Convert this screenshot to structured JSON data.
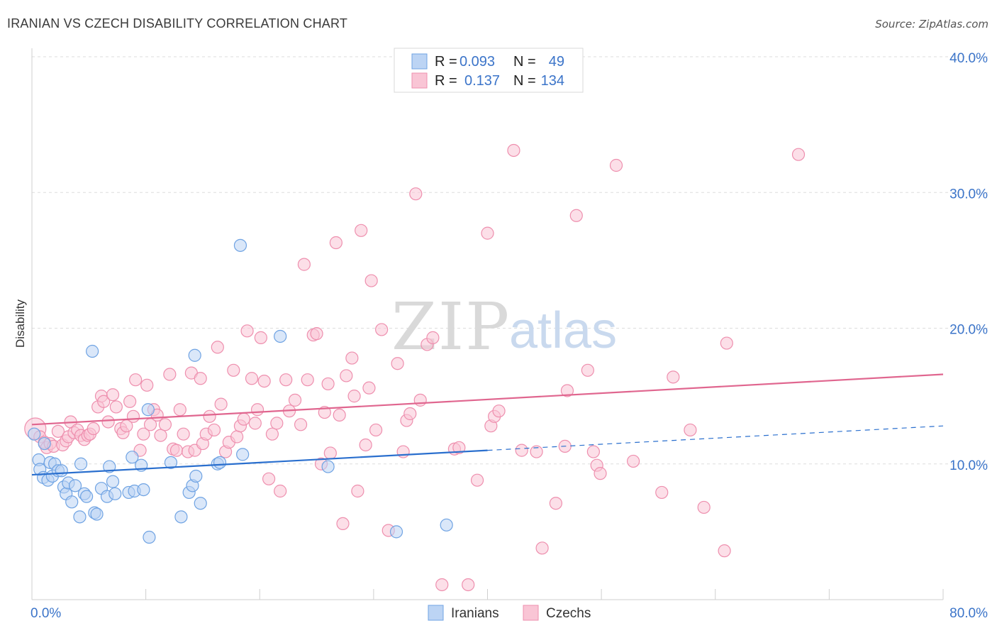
{
  "header": {
    "title": "IRANIAN VS CZECH DISABILITY CORRELATION CHART",
    "source": "Source: ZipAtlas.com"
  },
  "watermark": {
    "zip": "ZIP",
    "atlas": "atlas"
  },
  "colors": {
    "iranians": "#6fa3e3",
    "iranians_fill": "#bcd4f4",
    "iranians_line": "#2a6fce",
    "czechs": "#ee8fae",
    "czechs_fill": "#f9c5d5",
    "czechs_line": "#e0668f",
    "grid": "#dddddd",
    "tick_text": "#3b74c9"
  },
  "legend": {
    "rows": [
      {
        "r_label": "R =",
        "r_value": "0.093",
        "n_label": "N =",
        "n_value": "49"
      },
      {
        "r_label": "R =",
        "r_value": "0.137",
        "n_label": "N =",
        "n_value": "134"
      }
    ]
  },
  "bottom_legend": {
    "items": [
      "Iranians",
      "Czechs"
    ]
  },
  "chart_data": {
    "type": "scatter",
    "xlabel": "",
    "ylabel": "Disability",
    "xlim": [
      0,
      80
    ],
    "ylim": [
      0,
      40
    ],
    "x_tick_labels": [
      "0.0%",
      "80.0%"
    ],
    "y_ticks": [
      10,
      20,
      30,
      40
    ],
    "y_tick_labels": [
      "10.0%",
      "20.0%",
      "30.0%",
      "40.0%"
    ],
    "grid": true,
    "legend_position": "top-center",
    "series": [
      {
        "name": "Iranians",
        "trend": {
          "x": [
            0,
            40
          ],
          "y": [
            9.2,
            11.0
          ],
          "extended_dashed": {
            "x": [
              40,
              80
            ],
            "y": [
              11.0,
              12.8
            ]
          }
        },
        "points": [
          [
            0.2,
            12.2
          ],
          [
            0.6,
            10.3
          ],
          [
            0.7,
            9.6
          ],
          [
            1.0,
            9.0
          ],
          [
            1.1,
            11.5
          ],
          [
            1.4,
            8.8
          ],
          [
            1.6,
            10.1
          ],
          [
            1.8,
            9.1
          ],
          [
            2.0,
            10.0
          ],
          [
            2.3,
            9.5
          ],
          [
            2.6,
            9.5
          ],
          [
            2.8,
            8.3
          ],
          [
            3.0,
            7.8
          ],
          [
            3.2,
            8.6
          ],
          [
            3.5,
            7.2
          ],
          [
            3.8,
            8.4
          ],
          [
            4.2,
            6.1
          ],
          [
            4.3,
            10.0
          ],
          [
            4.6,
            7.8
          ],
          [
            4.8,
            7.6
          ],
          [
            5.3,
            18.3
          ],
          [
            5.5,
            6.4
          ],
          [
            5.7,
            6.3
          ],
          [
            6.1,
            8.2
          ],
          [
            6.6,
            7.6
          ],
          [
            6.8,
            9.8
          ],
          [
            7.1,
            8.7
          ],
          [
            7.3,
            7.8
          ],
          [
            8.5,
            7.9
          ],
          [
            8.8,
            10.5
          ],
          [
            9.0,
            8.0
          ],
          [
            9.6,
            9.9
          ],
          [
            9.8,
            8.1
          ],
          [
            10.3,
            4.6
          ],
          [
            10.2,
            14.0
          ],
          [
            12.2,
            10.1
          ],
          [
            13.1,
            6.1
          ],
          [
            13.8,
            7.9
          ],
          [
            14.1,
            8.4
          ],
          [
            14.4,
            9.1
          ],
          [
            14.8,
            7.1
          ],
          [
            14.3,
            18.0
          ],
          [
            16.3,
            10.0
          ],
          [
            16.5,
            10.1
          ],
          [
            18.3,
            26.1
          ],
          [
            18.5,
            10.7
          ],
          [
            21.8,
            19.4
          ],
          [
            26.0,
            9.8
          ],
          [
            32.0,
            5.0
          ],
          [
            36.4,
            5.5
          ]
        ]
      },
      {
        "name": "Czechs",
        "trend": {
          "x": [
            0,
            80
          ],
          "y": [
            12.9,
            16.6
          ]
        },
        "points": [
          [
            0.3,
            12.6
          ],
          [
            0.7,
            12.0
          ],
          [
            1.1,
            11.6
          ],
          [
            1.3,
            11.2
          ],
          [
            1.6,
            11.5
          ],
          [
            1.9,
            11.3
          ],
          [
            2.3,
            12.4
          ],
          [
            2.7,
            11.4
          ],
          [
            3.0,
            11.7
          ],
          [
            3.2,
            12.0
          ],
          [
            3.4,
            13.1
          ],
          [
            3.7,
            12.3
          ],
          [
            4.0,
            12.5
          ],
          [
            4.3,
            12.1
          ],
          [
            4.6,
            11.8
          ],
          [
            4.9,
            12.1
          ],
          [
            5.1,
            12.2
          ],
          [
            5.4,
            12.6
          ],
          [
            5.8,
            14.2
          ],
          [
            6.1,
            15.0
          ],
          [
            6.3,
            14.6
          ],
          [
            6.7,
            13.1
          ],
          [
            7.1,
            15.1
          ],
          [
            7.4,
            14.2
          ],
          [
            7.8,
            12.6
          ],
          [
            8.0,
            12.3
          ],
          [
            8.3,
            12.8
          ],
          [
            8.6,
            14.6
          ],
          [
            8.9,
            13.5
          ],
          [
            9.1,
            16.2
          ],
          [
            9.5,
            11.0
          ],
          [
            9.8,
            12.2
          ],
          [
            10.1,
            15.8
          ],
          [
            10.4,
            12.9
          ],
          [
            10.7,
            14.0
          ],
          [
            11.0,
            13.6
          ],
          [
            11.3,
            12.1
          ],
          [
            11.7,
            12.9
          ],
          [
            12.1,
            16.6
          ],
          [
            12.4,
            11.1
          ],
          [
            12.7,
            11.0
          ],
          [
            13.0,
            14.0
          ],
          [
            13.3,
            12.2
          ],
          [
            13.7,
            10.9
          ],
          [
            14.0,
            16.7
          ],
          [
            14.3,
            11.0
          ],
          [
            14.8,
            16.3
          ],
          [
            15.0,
            11.5
          ],
          [
            15.3,
            12.2
          ],
          [
            15.6,
            13.5
          ],
          [
            16.0,
            12.5
          ],
          [
            16.3,
            18.6
          ],
          [
            16.6,
            14.4
          ],
          [
            17.0,
            10.9
          ],
          [
            17.3,
            11.6
          ],
          [
            17.7,
            16.9
          ],
          [
            18.0,
            12.0
          ],
          [
            18.3,
            12.8
          ],
          [
            18.6,
            13.3
          ],
          [
            18.9,
            19.8
          ],
          [
            19.3,
            16.3
          ],
          [
            19.6,
            13.0
          ],
          [
            19.8,
            14.0
          ],
          [
            20.1,
            19.3
          ],
          [
            20.4,
            16.1
          ],
          [
            20.8,
            8.9
          ],
          [
            21.1,
            12.2
          ],
          [
            21.5,
            13.0
          ],
          [
            21.8,
            8.0
          ],
          [
            22.3,
            16.2
          ],
          [
            22.6,
            13.9
          ],
          [
            23.1,
            14.7
          ],
          [
            23.6,
            12.9
          ],
          [
            23.9,
            24.7
          ],
          [
            24.2,
            16.2
          ],
          [
            24.7,
            19.5
          ],
          [
            25.0,
            19.6
          ],
          [
            25.4,
            10.0
          ],
          [
            25.7,
            13.8
          ],
          [
            26.0,
            15.9
          ],
          [
            26.2,
            10.8
          ],
          [
            26.7,
            26.3
          ],
          [
            27.0,
            13.6
          ],
          [
            27.3,
            5.6
          ],
          [
            27.6,
            16.5
          ],
          [
            28.1,
            17.8
          ],
          [
            28.3,
            15.0
          ],
          [
            28.6,
            8.0
          ],
          [
            28.9,
            27.2
          ],
          [
            29.3,
            11.4
          ],
          [
            29.6,
            15.6
          ],
          [
            29.8,
            23.5
          ],
          [
            30.2,
            12.5
          ],
          [
            30.7,
            19.9
          ],
          [
            31.3,
            5.1
          ],
          [
            32.1,
            17.4
          ],
          [
            32.6,
            10.9
          ],
          [
            32.9,
            13.2
          ],
          [
            33.2,
            13.7
          ],
          [
            33.7,
            29.9
          ],
          [
            34.1,
            14.7
          ],
          [
            34.7,
            18.8
          ],
          [
            35.2,
            19.3
          ],
          [
            36.0,
            1.1
          ],
          [
            37.1,
            11.1
          ],
          [
            37.5,
            11.2
          ],
          [
            38.3,
            1.1
          ],
          [
            39.1,
            8.8
          ],
          [
            40.0,
            27.0
          ],
          [
            40.3,
            12.8
          ],
          [
            40.6,
            13.5
          ],
          [
            41.0,
            13.9
          ],
          [
            42.3,
            33.1
          ],
          [
            43.0,
            11.0
          ],
          [
            44.3,
            10.9
          ],
          [
            44.8,
            3.8
          ],
          [
            46.0,
            7.1
          ],
          [
            46.8,
            11.3
          ],
          [
            47.0,
            15.4
          ],
          [
            47.8,
            28.3
          ],
          [
            48.8,
            16.9
          ],
          [
            49.3,
            10.9
          ],
          [
            49.6,
            9.9
          ],
          [
            49.9,
            9.3
          ],
          [
            51.3,
            32.0
          ],
          [
            52.8,
            10.2
          ],
          [
            55.3,
            7.9
          ],
          [
            56.3,
            16.4
          ],
          [
            57.8,
            12.5
          ],
          [
            59.0,
            6.8
          ],
          [
            60.8,
            3.6
          ],
          [
            61.0,
            18.9
          ],
          [
            67.3,
            32.8
          ]
        ]
      }
    ]
  }
}
